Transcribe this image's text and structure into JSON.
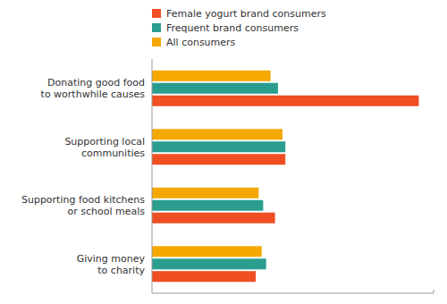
{
  "chart_data": {
    "type": "bar",
    "orientation": "horizontal",
    "categories": [
      "Donating good food\nto worthwhile causes",
      "Supporting local\ncommunities",
      "Supporting food kitchens\nor school meals",
      "Giving money\nto charity"
    ],
    "series": [
      {
        "name": "Female yogurt brand consumers",
        "color": "#F04E23",
        "values": [
          180,
          90,
          83,
          70
        ]
      },
      {
        "name": "Frequent brand consumers",
        "color": "#2A9D8F",
        "values": [
          85,
          90,
          75,
          77
        ]
      },
      {
        "name": "All consumers",
        "color": "#F4A800",
        "values": [
          80,
          88,
          72,
          74
        ]
      }
    ],
    "xlim": [
      0,
      190
    ],
    "grid": false,
    "tick_labels": false,
    "legend": "top"
  }
}
